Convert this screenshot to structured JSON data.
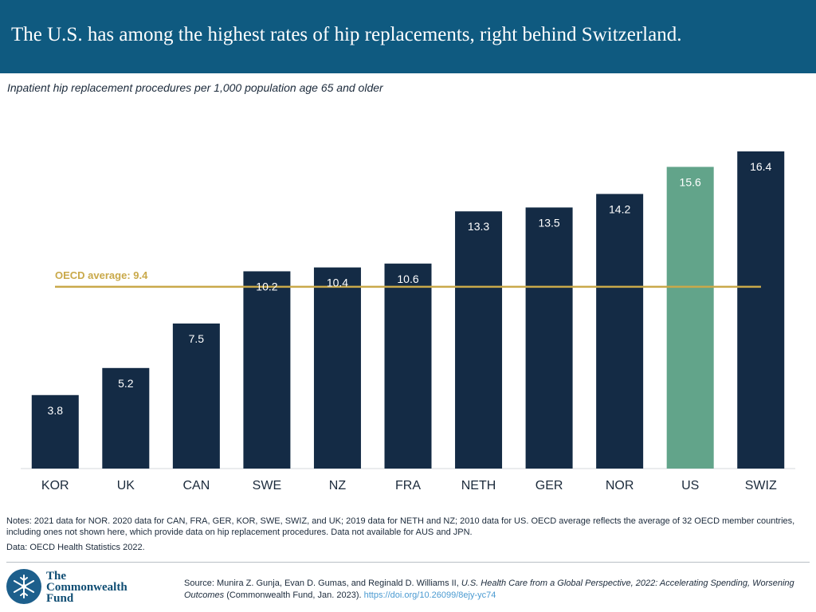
{
  "header": {
    "title": "The U.S. has among the highest rates of hip replacements, right behind Switzerland."
  },
  "subtitle": "Inpatient hip replacement procedures per 1,000 population age 65 and older",
  "chart_data": {
    "type": "bar",
    "title": "The U.S. has among the highest rates of hip replacements, right behind Switzerland.",
    "ylabel": "Inpatient hip replacement procedures per 1,000 population age 65 and older",
    "xlabel": "",
    "categories": [
      "KOR",
      "UK",
      "CAN",
      "SWE",
      "NZ",
      "FRA",
      "NETH",
      "GER",
      "NOR",
      "US",
      "SWIZ"
    ],
    "values": [
      3.8,
      5.2,
      7.5,
      10.2,
      10.4,
      10.6,
      13.3,
      13.5,
      14.2,
      15.6,
      16.4
    ],
    "value_labels": [
      "3.8",
      "5.2",
      "7.5",
      "10.2",
      "10.4",
      "10.6",
      "13.3",
      "13.5",
      "14.2",
      "15.6",
      "16.4"
    ],
    "highlight_category": "US",
    "ylim": [
      0,
      16.4
    ],
    "grid": false,
    "reference_line": {
      "label": "OECD average: 9.4",
      "value": 9.4
    },
    "colors": {
      "bar": "#142b45",
      "highlight": "#62a48a",
      "reference": "#c9a94a",
      "label_text": "#ffffff"
    }
  },
  "notes": "Notes: 2021 data for NOR. 2020 data for CAN, FRA, GER, KOR,  SWE, SWIZ, and UK; 2019 data for NETH and NZ; 2010 data for US. OECD average reflects the average of 32 OECD member countries, including ones not shown here, which provide data on hip replacement procedures. Data not available for AUS and JPN.",
  "data_source": "Data: OECD Health Statistics 2022.",
  "logo": {
    "line1": "The",
    "line2": "Commonwealth",
    "line3": "Fund",
    "icon": "snowflake-seal-icon"
  },
  "source": {
    "prefix": "Source: Munira Z. Gunja, Evan D. Gumas, and Reginald D. Williams II, ",
    "italic": "U.S. Health Care from a Global Perspective, 2022: Accelerating Spending, Worsening Outcomes",
    "suffix": " (Commonwealth Fund, Jan. 2023). ",
    "link": "https://doi.org/10.26099/8ejy-yc74"
  }
}
